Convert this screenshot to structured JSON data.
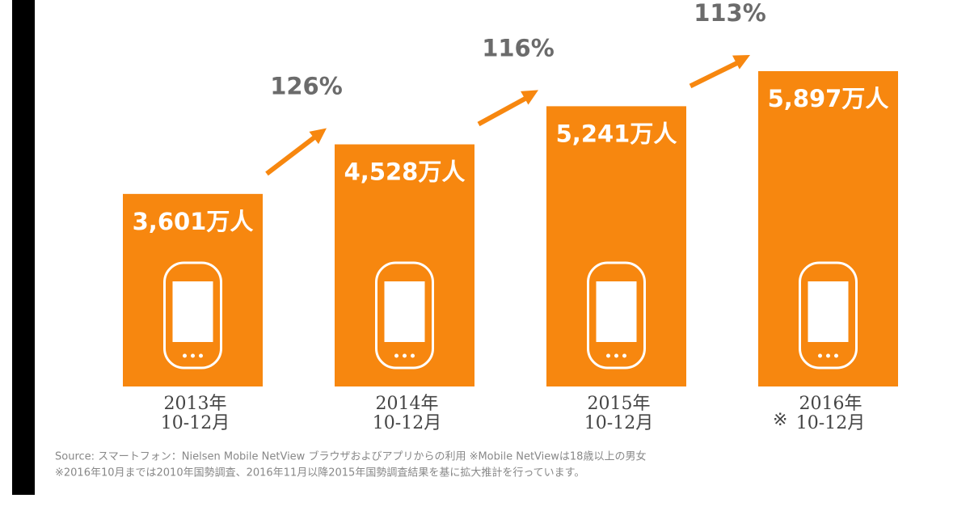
{
  "chart_data": {
    "type": "bar",
    "categories": [
      [
        "2013年",
        "10-12月"
      ],
      [
        "2014年",
        "10-12月"
      ],
      [
        "2015年",
        "10-12月"
      ],
      [
        "2016年",
        "10-12月"
      ]
    ],
    "values": [
      3601,
      4528,
      5241,
      5897
    ],
    "value_labels": [
      "3,601万人",
      "4,528万人",
      "5,241万人",
      "5,897万人"
    ],
    "color": "#f7870f",
    "growth_labels": [
      "126%",
      "116%",
      "113%"
    ],
    "category_note": {
      "index": 3,
      "text": "※"
    },
    "source": [
      "Source: スマートフォン：Nielsen Mobile NetView ブラウザおよびアプリからの利用 ※Mobile NetViewは18歳以上の男女",
      "※2016年10月までは2010年国勢調査、2016年11月以降2015年国勢調査結果を基に拡大推計を行っています。"
    ]
  }
}
